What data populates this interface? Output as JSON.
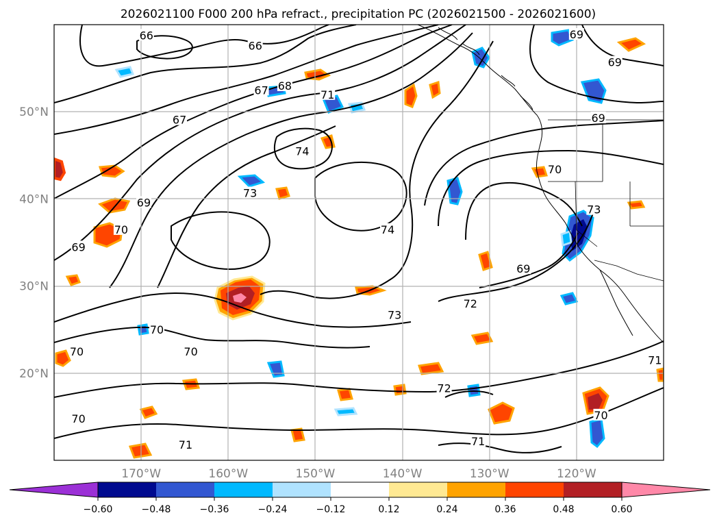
{
  "title": "2026021100 F000 200 hPa refract., precipitation PC (2026021500 - 2026021600)",
  "map": {
    "lon_range": [
      -180,
      -110
    ],
    "lat_range": [
      10,
      60
    ],
    "lat_ticks": [
      {
        "value": 50,
        "label": "50°N"
      },
      {
        "value": 40,
        "label": "40°N"
      },
      {
        "value": 30,
        "label": "30°N"
      },
      {
        "value": 20,
        "label": "20°N"
      }
    ],
    "lon_ticks": [
      {
        "value": -170,
        "label": "170°W"
      },
      {
        "value": -160,
        "label": "160°W"
      },
      {
        "value": -150,
        "label": "150°W"
      },
      {
        "value": -140,
        "label": "140°W"
      },
      {
        "value": -130,
        "label": "130°W"
      },
      {
        "value": -120,
        "label": "120°W"
      }
    ],
    "contour_labels": [
      {
        "text": "66",
        "lon": -169.4,
        "lat": 58.8
      },
      {
        "text": "66",
        "lon": -156.9,
        "lat": 57.6
      },
      {
        "text": "67",
        "lon": -156.2,
        "lat": 52.5
      },
      {
        "text": "68",
        "lon": -153.5,
        "lat": 53.0
      },
      {
        "text": "67",
        "lon": -165.6,
        "lat": 49.1
      },
      {
        "text": "71",
        "lon": -148.6,
        "lat": 52.0
      },
      {
        "text": "74",
        "lon": -151.5,
        "lat": 45.5
      },
      {
        "text": "73",
        "lon": -157.5,
        "lat": 40.7
      },
      {
        "text": "74",
        "lon": -141.7,
        "lat": 36.5
      },
      {
        "text": "69",
        "lon": -169.7,
        "lat": 39.6
      },
      {
        "text": "70",
        "lon": -172.3,
        "lat": 36.5
      },
      {
        "text": "69",
        "lon": -177.2,
        "lat": 34.5
      },
      {
        "text": "70",
        "lon": -168.2,
        "lat": 25.0
      },
      {
        "text": "70",
        "lon": -164.3,
        "lat": 22.5
      },
      {
        "text": "70",
        "lon": -177.4,
        "lat": 22.5
      },
      {
        "text": "70",
        "lon": -177.2,
        "lat": 14.8
      },
      {
        "text": "71",
        "lon": -164.9,
        "lat": 11.8
      },
      {
        "text": "73",
        "lon": -140.9,
        "lat": 26.7
      },
      {
        "text": "72",
        "lon": -132.2,
        "lat": 28.0
      },
      {
        "text": "69",
        "lon": -126.1,
        "lat": 32.0
      },
      {
        "text": "72",
        "lon": -135.2,
        "lat": 18.3
      },
      {
        "text": "71",
        "lon": -131.3,
        "lat": 12.2
      },
      {
        "text": "70",
        "lon": -117.2,
        "lat": 15.2
      },
      {
        "text": "71",
        "lon": -111.0,
        "lat": 21.5
      },
      {
        "text": "70",
        "lon": -122.5,
        "lat": 43.4
      },
      {
        "text": "69",
        "lon": -117.5,
        "lat": 49.3
      },
      {
        "text": "69",
        "lon": -115.6,
        "lat": 55.7
      },
      {
        "text": "69",
        "lon": -120.0,
        "lat": 58.9
      },
      {
        "text": "73",
        "lon": -118.0,
        "lat": 38.8
      }
    ]
  },
  "colorbar": {
    "tick_labels": [
      "−0.60",
      "−0.48",
      "−0.36",
      "−0.24",
      "−0.12",
      "0.12",
      "0.24",
      "0.36",
      "0.48",
      "0.60"
    ],
    "colors": [
      "#9b30d6",
      "#000a8f",
      "#3257d1",
      "#00b9ff",
      "#b0e3ff",
      "#ffffff",
      "#ffe993",
      "#ffa300",
      "#ff4500",
      "#b21f24",
      "#ff88a8"
    ]
  }
}
